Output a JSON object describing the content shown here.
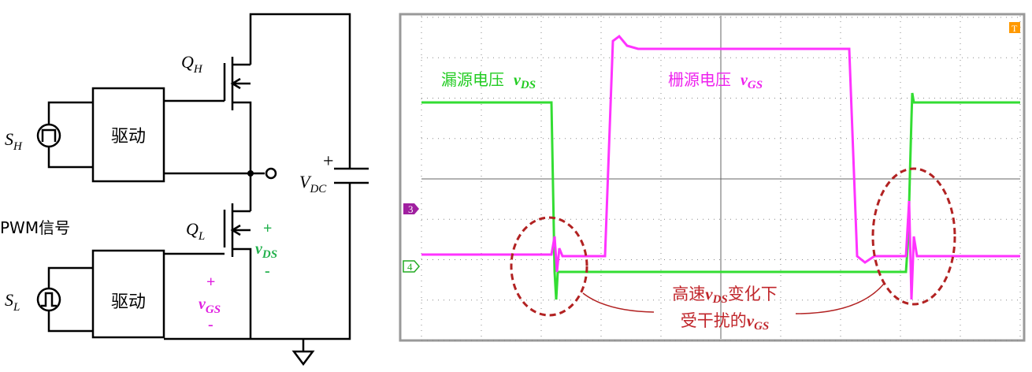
{
  "circuit": {
    "high_side": {
      "switch": {
        "main": "Q",
        "sub": "H"
      },
      "source": {
        "main": "S",
        "sub": "H"
      },
      "driver": "驱动"
    },
    "low_side": {
      "switch": {
        "main": "Q",
        "sub": "L"
      },
      "source": {
        "main": "S",
        "sub": "L"
      },
      "driver": "驱动",
      "vds": {
        "plus": "+",
        "main": "v",
        "sub": "DS",
        "minus": "-"
      },
      "vgs": {
        "plus": "+",
        "main": "v",
        "sub": "GS",
        "minus": "-"
      }
    },
    "capacitor": {
      "plus": "+",
      "main": "V",
      "sub": "DC"
    },
    "pwm_label": "PWM信号"
  },
  "scope": {
    "channel_markers": [
      "3",
      "4"
    ],
    "trigger_marker": "T",
    "vds_label": {
      "text": "漏源电压",
      "main": "v",
      "sub": "DS"
    },
    "vgs_label": {
      "text": "栅源电压",
      "main": "v",
      "sub": "GS"
    },
    "annotation": {
      "line1": {
        "pre": "高速",
        "main": "v",
        "sub": "DS",
        "post": "变化下"
      },
      "line2": {
        "pre": "受干扰的",
        "main": "v",
        "sub": "GS"
      }
    }
  }
}
